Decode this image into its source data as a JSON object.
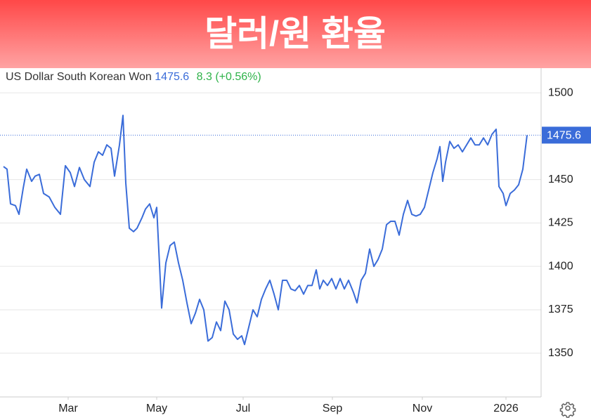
{
  "chart_data": {
    "type": "line",
    "title": "달러/원 환율",
    "change": "8.3 (+0.56%)",
    "xlim": [
      -2.5,
      382.5
    ],
    "ylim": [
      1324.8,
      1514.2
    ],
    "grid": true,
    "xticks": [
      {
        "value": 46,
        "label": "Mar"
      },
      {
        "value": 109,
        "label": "May"
      },
      {
        "value": 170.5,
        "label": "Jul"
      },
      {
        "value": 234,
        "label": "Sep"
      },
      {
        "value": 298,
        "label": "Nov"
      },
      {
        "value": 357.5,
        "label": "2026"
      }
    ],
    "yticks": [
      1350,
      1375,
      1400,
      1425,
      1450,
      1500
    ],
    "x": [
      0,
      2.5,
      5,
      8.5,
      11,
      14,
      16.5,
      20,
      22.5,
      25.5,
      28.5,
      32.5,
      36.5,
      40.5,
      44,
      47.5,
      50.5,
      54,
      57.5,
      61.5,
      64.5,
      67.5,
      70.5,
      73.5,
      76.5,
      79,
      82.5,
      85,
      87,
      89.5,
      92.5,
      95,
      98.5,
      101,
      104,
      107,
      109,
      112.5,
      115.5,
      118.5,
      121.5,
      124.5,
      127.5,
      130.5,
      133.5,
      136.5,
      139.5,
      142.5,
      145.5,
      148.5,
      151.5,
      154.5,
      157.5,
      160.5,
      163.5,
      166.5,
      169.5,
      171.5,
      174.5,
      177.5,
      180.5,
      183.5,
      186.5,
      189.5,
      192.5,
      195.5,
      198.5,
      201.5,
      204.5,
      207.5,
      210.5,
      213.5,
      216.5,
      219.5,
      222.5,
      225,
      227.5,
      230.5,
      233.5,
      236.5,
      239.5,
      242.5,
      245.5,
      249,
      251.5,
      254.5,
      257.5,
      260.5,
      263.5,
      266.5,
      269.5,
      272.5,
      275.5,
      278.5,
      281.5,
      284.5,
      287.5,
      290.5,
      293.5,
      296.5,
      299.5,
      302.5,
      305.5,
      308.5,
      310.5,
      312.5,
      314.5,
      317.5,
      320.5,
      323.5,
      326.5,
      329.5,
      332.5,
      335.5,
      338.5,
      341.5,
      344.5,
      347.5,
      350.5,
      352.5,
      355.5,
      357.5,
      360.5,
      363.5,
      366.5,
      369.5,
      372.5
    ],
    "series": [
      {
        "name": "US Dollar South Korean Won",
        "color": "#3a6cd9",
        "values": [
          1457.5,
          1456,
          1436,
          1435,
          1430,
          1445,
          1456,
          1449,
          1452,
          1453,
          1442,
          1440,
          1434,
          1430,
          1458,
          1454,
          1446,
          1457,
          1450,
          1446,
          1460,
          1466,
          1464,
          1470,
          1468,
          1452,
          1470,
          1487,
          1448,
          1422,
          1420,
          1422,
          1428,
          1433,
          1436,
          1428,
          1434,
          1376,
          1402,
          1412,
          1414,
          1402,
          1392,
          1379,
          1367,
          1373,
          1381,
          1375,
          1357,
          1359,
          1368,
          1363,
          1380,
          1375,
          1361,
          1358,
          1360,
          1355,
          1365,
          1375,
          1371,
          1381,
          1387,
          1392,
          1384,
          1375,
          1392,
          1392,
          1387,
          1386,
          1389,
          1384,
          1389,
          1389,
          1398,
          1387,
          1392,
          1389,
          1393,
          1387,
          1393,
          1387,
          1392,
          1385,
          1379,
          1392,
          1396,
          1410,
          1400,
          1404,
          1410,
          1424,
          1426,
          1426,
          1418,
          1430,
          1438,
          1430,
          1429,
          1430,
          1434,
          1444,
          1454,
          1462,
          1469,
          1449,
          1460,
          1472,
          1468,
          1470,
          1466,
          1470,
          1474,
          1470,
          1470,
          1474,
          1470,
          1476,
          1479,
          1446,
          1442,
          1435,
          1442,
          1444,
          1447,
          1456,
          1475.6
        ]
      }
    ]
  }
}
